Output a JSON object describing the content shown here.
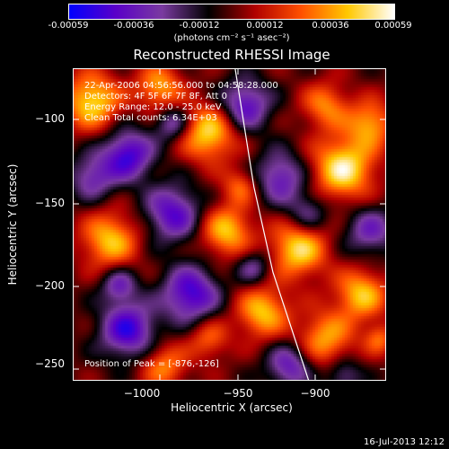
{
  "colorbar": {
    "tick_labels": [
      "-0.00059",
      "-0.00036",
      "-0.00012",
      "0.00012",
      "0.00036",
      "0.00059"
    ],
    "units_label": "(photons cm⁻² s⁻¹ asec⁻²)",
    "range": [
      -0.00059,
      0.00059
    ]
  },
  "title": "Reconstructed RHESSI Image",
  "annotations": {
    "time_range": "22-Apr-2006 04:56:56.000 to 04:58:28.000",
    "detectors": "Detectors: 4F 5F 6F 7F 8F, Att 0",
    "energy_range": "Energy Range: 12.0 - 25.0 keV",
    "clean_counts": "Clean     Total counts: 6.34E+03",
    "peak_position": "Position of Peak = [-876,-126]"
  },
  "axes": {
    "xlabel": "Heliocentric X (arcsec)",
    "ylabel": "Heliocentric Y (arcsec)",
    "xlim": [
      -1046,
      -880
    ],
    "ylim": [
      -264,
      -80
    ],
    "xticks": [
      -1000,
      -950,
      -900
    ],
    "yticks": [
      -100,
      -150,
      -200,
      -250
    ],
    "xtick_labels": [
      "−1000",
      "−950",
      "−900"
    ],
    "ytick_labels": [
      "−100",
      "−150",
      "−200",
      "−250"
    ]
  },
  "limb_points": [
    [
      -960,
      -80
    ],
    [
      -950,
      -150
    ],
    [
      -940,
      -200
    ],
    [
      -921,
      -264
    ]
  ],
  "timestamp": "16-Jul-2013 12:12",
  "colors": {
    "background": "#000000",
    "foreground": "#ffffff",
    "colormap": [
      "#0000ff",
      "#5a00c8",
      "#7a3aa0",
      "#000000",
      "#b00000",
      "#ff5000",
      "#ffc800",
      "#ffffff"
    ]
  }
}
